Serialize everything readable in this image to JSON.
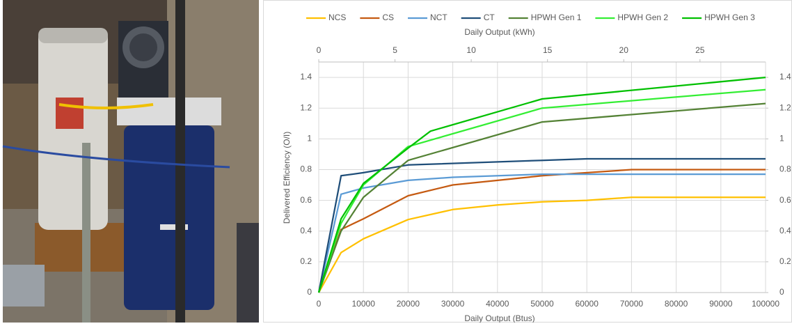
{
  "chart_data": {
    "type": "line",
    "x_label": "Daily Output (Btus)",
    "x2_label": "Daily Output (kWh)",
    "y_label": "Delivered Efficiency (O/I)",
    "xlim": [
      0,
      100000
    ],
    "xticks": [
      0,
      10000,
      20000,
      30000,
      40000,
      50000,
      60000,
      70000,
      80000,
      90000,
      100000
    ],
    "x2lim": [
      0,
      29.3
    ],
    "x2ticks": [
      0,
      5,
      10,
      15,
      20,
      25
    ],
    "ylim": [
      0,
      1.5
    ],
    "yticks": [
      0,
      0.2,
      0.4,
      0.6,
      0.8,
      1,
      1.2,
      1.4
    ],
    "y2lim": [
      0,
      1.5
    ],
    "y2ticks": [
      0,
      0.2,
      0.4,
      0.6,
      0.8,
      1,
      1.2,
      1.4
    ],
    "grid": true,
    "legend": "top",
    "series": [
      {
        "name": "NCS",
        "color": "#ffc000",
        "x": [
          0,
          5000,
          10000,
          20000,
          30000,
          40000,
          50000,
          60000,
          70000,
          100000
        ],
        "values": [
          0,
          0.26,
          0.35,
          0.475,
          0.54,
          0.57,
          0.59,
          0.6,
          0.62,
          0.62
        ]
      },
      {
        "name": "CS",
        "color": "#c55a11",
        "x": [
          0,
          5000,
          10000,
          20000,
          30000,
          50000,
          70000,
          100000
        ],
        "values": [
          0,
          0.41,
          0.48,
          0.63,
          0.7,
          0.76,
          0.8,
          0.8
        ]
      },
      {
        "name": "NCT",
        "color": "#5b9bd5",
        "x": [
          0,
          5000,
          10000,
          20000,
          30000,
          50000,
          70000,
          100000
        ],
        "values": [
          0,
          0.64,
          0.68,
          0.73,
          0.75,
          0.77,
          0.77,
          0.77
        ]
      },
      {
        "name": "CT",
        "color": "#1f4e79",
        "x": [
          0,
          5000,
          10000,
          20000,
          50000,
          60000,
          100000
        ],
        "values": [
          0,
          0.76,
          0.78,
          0.83,
          0.86,
          0.87,
          0.87
        ]
      },
      {
        "name": "HPWH Gen 1",
        "color": "#548235",
        "x": [
          0,
          5000,
          10000,
          20000,
          50000,
          100000
        ],
        "values": [
          0,
          0.4,
          0.62,
          0.86,
          1.11,
          1.23
        ]
      },
      {
        "name": "HPWH Gen 2",
        "color": "#33ee33",
        "x": [
          0,
          5000,
          10000,
          20000,
          50000,
          100000
        ],
        "values": [
          0,
          0.45,
          0.7,
          0.95,
          1.2,
          1.32
        ]
      },
      {
        "name": "HPWH Gen 3",
        "color": "#00c000",
        "x": [
          0,
          5000,
          10000,
          20000,
          25000,
          50000,
          100000
        ],
        "values": [
          0,
          0.48,
          0.71,
          0.94,
          1.05,
          1.26,
          1.4
        ]
      }
    ]
  }
}
